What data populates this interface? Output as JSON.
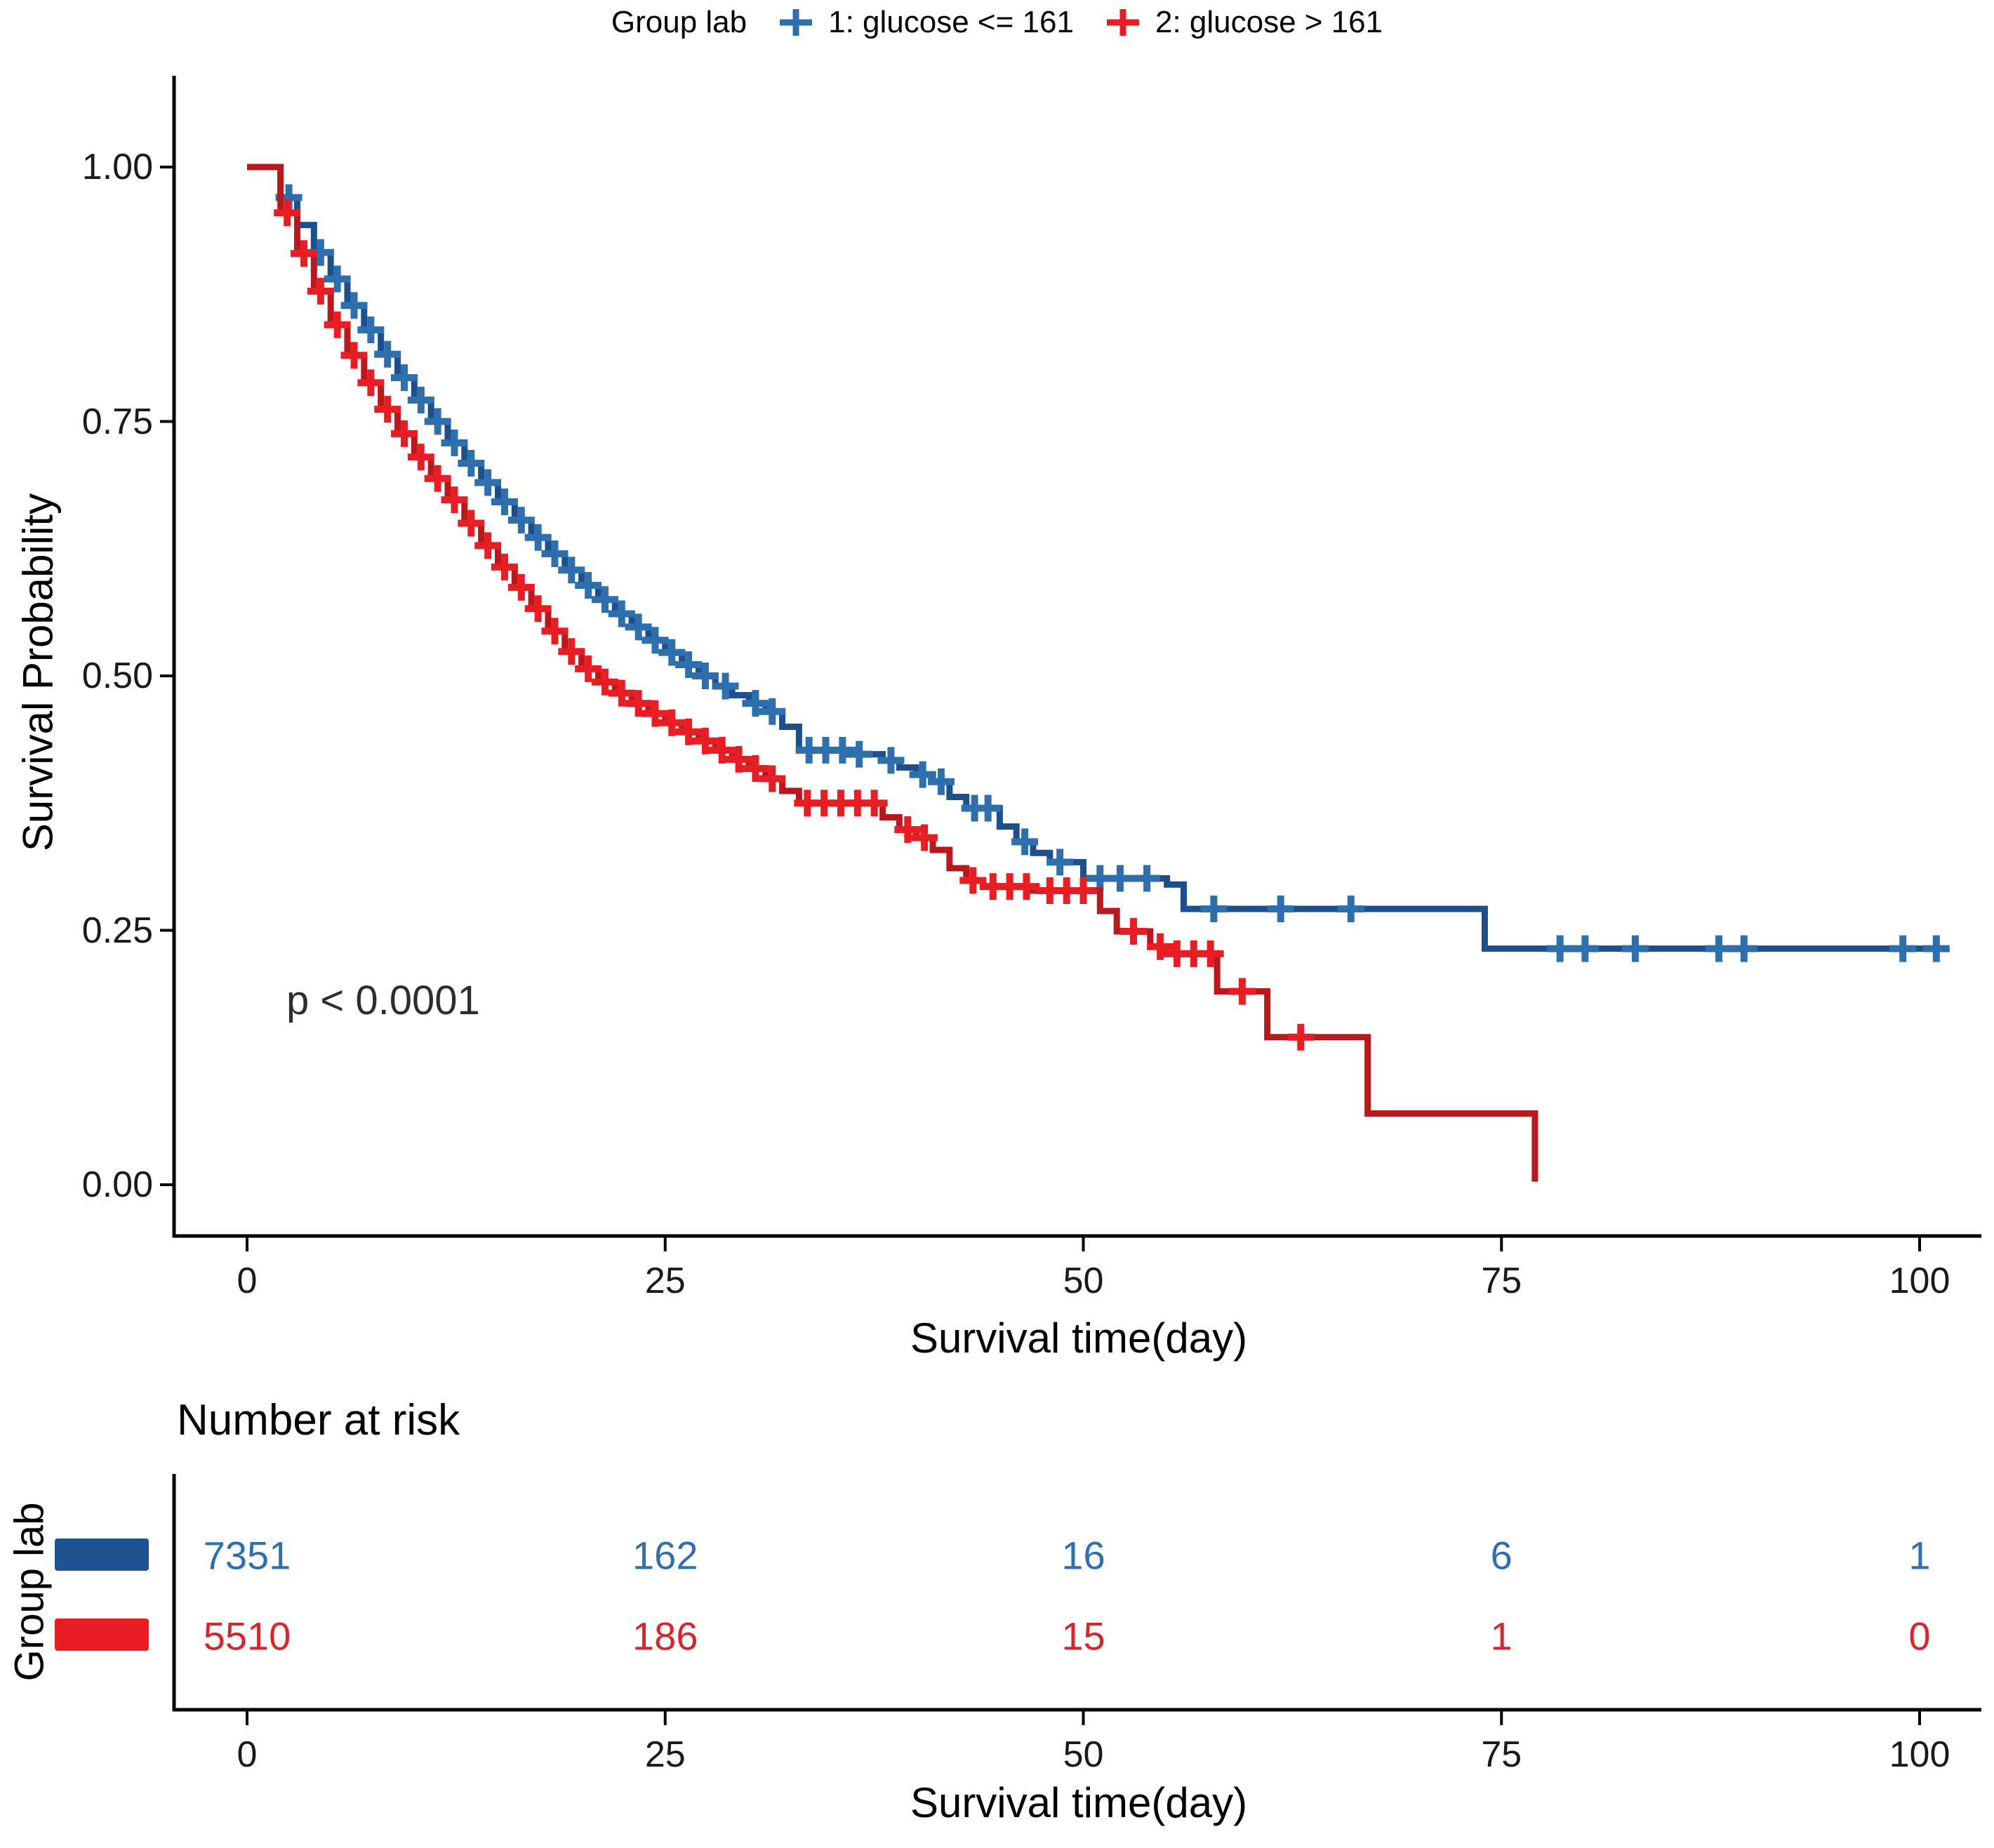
{
  "legend": {
    "title": "Group lab",
    "items": [
      {
        "label": "1: glucose <= 161",
        "color": "#2e6fad"
      },
      {
        "label": "2: glucose > 161",
        "color": "#e81e24"
      }
    ]
  },
  "axes": {
    "x_label": "Survival time(day)",
    "y_label": "Survival Probability",
    "x_tick_labels": [
      "0",
      "25",
      "50",
      "75",
      "100"
    ],
    "y_tick_labels": [
      "1.00",
      "0.75",
      "0.50",
      "0.25",
      "0.00"
    ]
  },
  "risk_table": {
    "title": "Number at risk",
    "ylabel": "Group lab",
    "xlabel": "Survival time(day)",
    "x_tick_labels": [
      "0",
      "25",
      "50",
      "75",
      "100"
    ],
    "times": [
      0,
      25,
      50,
      75,
      100
    ],
    "rows": [
      {
        "group": "1: glucose <= 161",
        "color": "#2e6fad",
        "swatch_color": "#1f5292",
        "values": [
          "7351",
          "162",
          "16",
          "6",
          "1"
        ]
      },
      {
        "group": "2: glucose > 161",
        "color": "#d8252b",
        "swatch_color": "#e81e24",
        "values": [
          "5510",
          "186",
          "15",
          "1",
          "0"
        ]
      }
    ]
  },
  "chart_data": {
    "type": "line",
    "subtype": "kaplan-meier-step",
    "title": "",
    "xlabel": "Survival time(day)",
    "ylabel": "Survival Probability",
    "annotation": "p < 0.0001",
    "legend_title": "Group lab",
    "xlim": [
      0,
      101.5
    ],
    "ylim": [
      0,
      1
    ],
    "x_ticks": [
      0,
      25,
      50,
      75,
      100
    ],
    "y_ticks": [
      1.0,
      0.75,
      0.5,
      0.25,
      0.0
    ],
    "grid": false,
    "legend_position": "top",
    "series": [
      {
        "name": "1: glucose <= 161",
        "line_color": "#1d4f8c",
        "censor_color": "#2e6fad",
        "end_time": 101.5,
        "steps": [
          [
            0,
            1.0
          ],
          [
            2,
            0.97
          ],
          [
            3,
            0.943
          ],
          [
            4,
            0.916
          ],
          [
            5,
            0.89
          ],
          [
            6,
            0.864
          ],
          [
            7,
            0.84
          ],
          [
            8,
            0.816
          ],
          [
            9,
            0.793
          ],
          [
            10,
            0.771
          ],
          [
            11,
            0.75
          ],
          [
            12,
            0.729
          ],
          [
            13,
            0.709
          ],
          [
            14,
            0.69
          ],
          [
            15,
            0.671
          ],
          [
            16,
            0.653
          ],
          [
            17,
            0.636
          ],
          [
            18,
            0.62
          ],
          [
            19,
            0.604
          ],
          [
            20,
            0.589
          ],
          [
            21,
            0.575
          ],
          [
            22,
            0.561
          ],
          [
            23,
            0.548
          ],
          [
            24,
            0.535
          ],
          [
            25,
            0.523
          ],
          [
            26,
            0.511
          ],
          [
            27,
            0.5
          ],
          [
            28,
            0.49
          ],
          [
            29,
            0.481
          ],
          [
            30,
            0.473
          ],
          [
            31,
            0.465
          ],
          [
            32,
            0.45
          ],
          [
            33,
            0.427
          ],
          [
            36,
            0.423
          ],
          [
            38,
            0.417
          ],
          [
            39,
            0.41
          ],
          [
            40,
            0.403
          ],
          [
            41,
            0.396
          ],
          [
            42,
            0.381
          ],
          [
            43,
            0.37
          ],
          [
            45,
            0.352
          ],
          [
            46,
            0.337
          ],
          [
            47,
            0.326
          ],
          [
            48,
            0.317
          ],
          [
            50,
            0.301
          ],
          [
            55,
            0.295
          ],
          [
            56,
            0.271
          ],
          [
            74,
            0.232
          ]
        ],
        "censor_times": [
          2.5,
          4.4,
          5.4,
          6.4,
          7.4,
          8.4,
          9.4,
          10.4,
          11.4,
          12.4,
          13.4,
          14.4,
          15.4,
          16.4,
          17.4,
          18.4,
          19.4,
          20.4,
          21.4,
          22.4,
          23.4,
          24.4,
          25.4,
          26.4,
          27.4,
          28.6,
          30.4,
          31.4,
          33.6,
          34.6,
          35.6,
          36.6,
          38.5,
          40.4,
          41.5,
          43.5,
          44.3,
          46.5,
          48.6,
          51,
          52.2,
          53.8,
          57.8,
          61.8,
          66,
          78.5,
          80,
          83,
          88,
          89.5,
          99,
          101
        ]
      },
      {
        "name": "2: glucose > 161",
        "line_color": "#b9181d",
        "censor_color": "#e81e24",
        "end_time": 77,
        "steps": [
          [
            0,
            1.0
          ],
          [
            2,
            0.955
          ],
          [
            3,
            0.915
          ],
          [
            4,
            0.878
          ],
          [
            5,
            0.845
          ],
          [
            6,
            0.815
          ],
          [
            7,
            0.788
          ],
          [
            8,
            0.762
          ],
          [
            9,
            0.738
          ],
          [
            10,
            0.715
          ],
          [
            11,
            0.694
          ],
          [
            12,
            0.673
          ],
          [
            13,
            0.65
          ],
          [
            14,
            0.628
          ],
          [
            15,
            0.607
          ],
          [
            16,
            0.587
          ],
          [
            17,
            0.566
          ],
          [
            18,
            0.544
          ],
          [
            19,
            0.524
          ],
          [
            20,
            0.507
          ],
          [
            21,
            0.494
          ],
          [
            22,
            0.483
          ],
          [
            23,
            0.473
          ],
          [
            24,
            0.463
          ],
          [
            25,
            0.454
          ],
          [
            26,
            0.445
          ],
          [
            27,
            0.436
          ],
          [
            28,
            0.427
          ],
          [
            29,
            0.418
          ],
          [
            30,
            0.409
          ],
          [
            31,
            0.399
          ],
          [
            32,
            0.387
          ],
          [
            33,
            0.375
          ],
          [
            38,
            0.361
          ],
          [
            39,
            0.349
          ],
          [
            40,
            0.341
          ],
          [
            41,
            0.329
          ],
          [
            42,
            0.311
          ],
          [
            43,
            0.299
          ],
          [
            44,
            0.293
          ],
          [
            47,
            0.289
          ],
          [
            51,
            0.269
          ],
          [
            52,
            0.249
          ],
          [
            54,
            0.234
          ],
          [
            55,
            0.227
          ],
          [
            58,
            0.19
          ],
          [
            61,
            0.145
          ],
          [
            67,
            0.07
          ],
          [
            77,
            0.003
          ]
        ],
        "censor_times": [
          2.4,
          3.4,
          4.4,
          5.4,
          6.4,
          7.4,
          8.4,
          9.4,
          10.4,
          11.4,
          12.4,
          13.4,
          14.4,
          15.4,
          16.4,
          17.4,
          18.4,
          19.4,
          20.4,
          21.4,
          22.4,
          23.4,
          24.4,
          25.4,
          26.4,
          27.4,
          28.4,
          29.4,
          30.4,
          31.4,
          33.5,
          34.5,
          35.5,
          36.5,
          37.5,
          39.5,
          40.5,
          43.4,
          44.6,
          45.6,
          46.6,
          48,
          49,
          50,
          53,
          54.6,
          55.6,
          56.6,
          57.6,
          59.5,
          63
        ]
      }
    ]
  }
}
